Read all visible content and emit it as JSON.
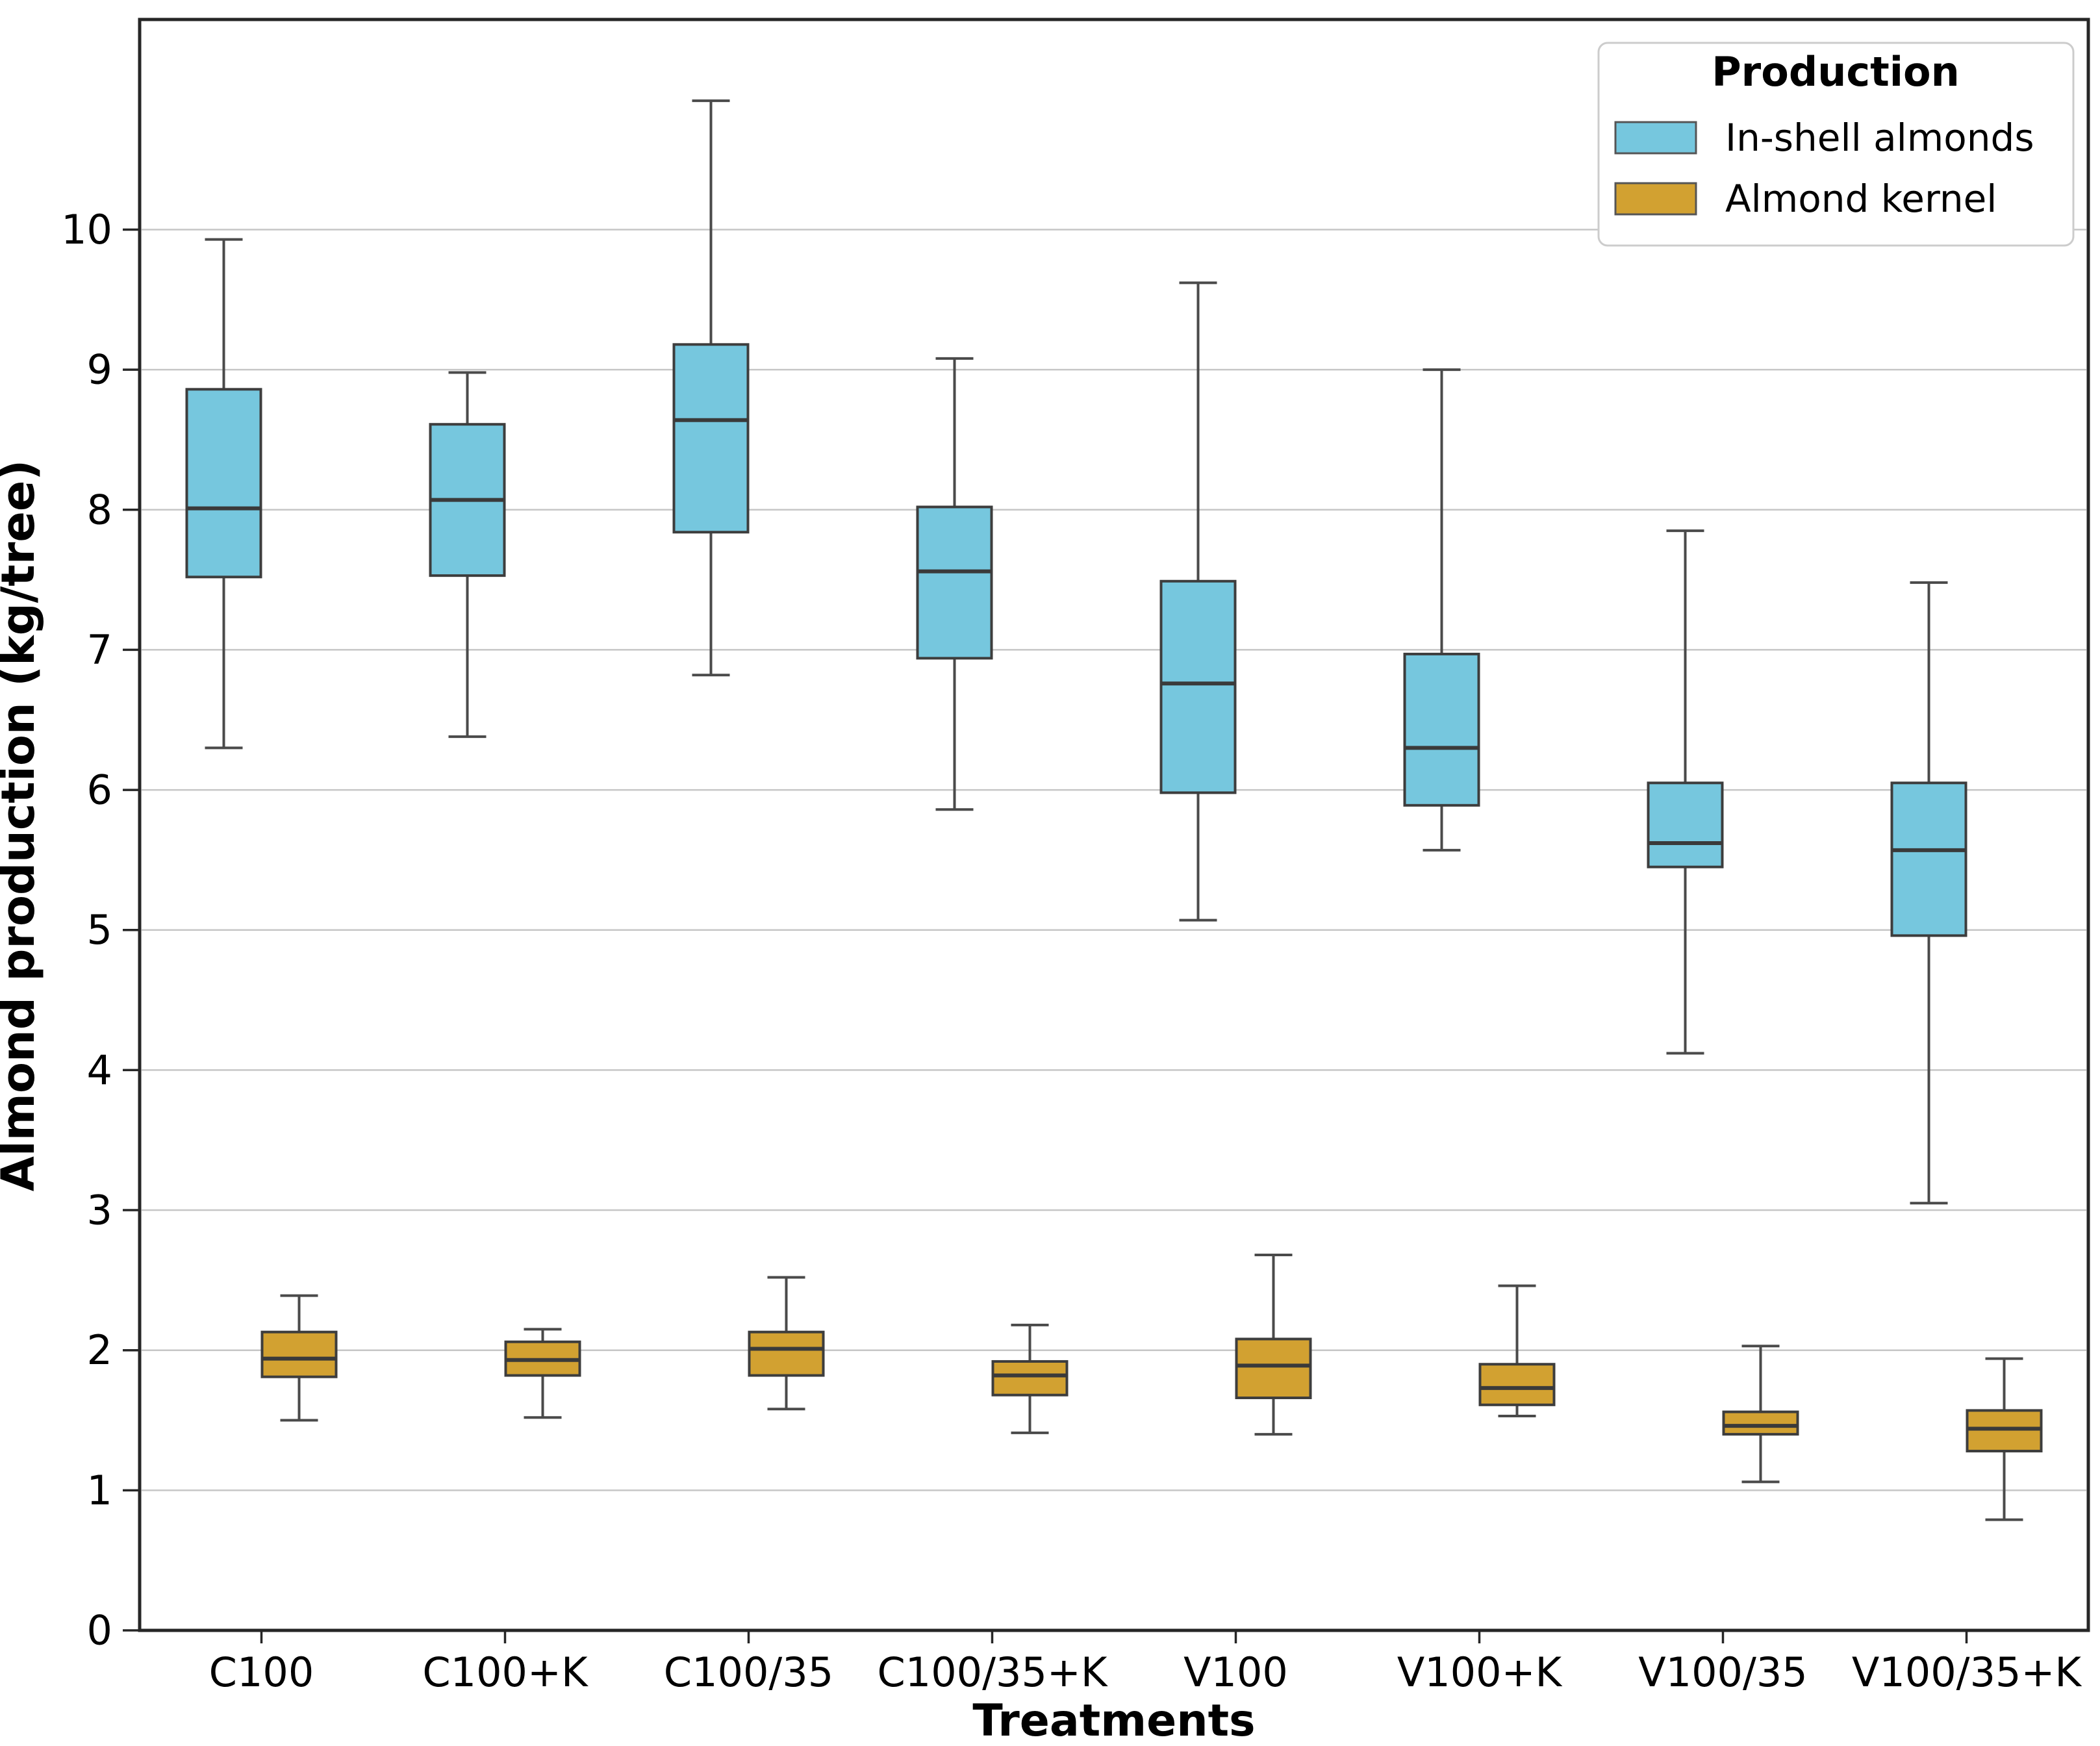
{
  "figure": {
    "background": "#ffffff"
  },
  "chart_data": {
    "type": "boxplot",
    "title": "",
    "xlabel": "Treatments",
    "ylabel": "Almond production (kg/tree)",
    "ylim": [
      0,
      11.5
    ],
    "yticks": [
      0,
      1,
      2,
      3,
      4,
      5,
      6,
      7,
      8,
      9,
      10
    ],
    "grid": {
      "axis": "y",
      "lines_at": [
        1,
        2,
        3,
        4,
        5,
        6,
        7,
        8,
        9,
        10
      ],
      "color": "#c6c6c6"
    },
    "legend": {
      "title": "Production",
      "position": "upper-right",
      "entries": [
        {
          "label": "In-shell almonds",
          "color": "#76C7DE"
        },
        {
          "label": "Almond kernel",
          "color": "#D2A131"
        }
      ]
    },
    "categories": [
      "C100",
      "C100+K",
      "C100/35",
      "C100/35+K",
      "V100",
      "V100+K",
      "V100/35",
      "V100/35+K"
    ],
    "series": [
      {
        "name": "In-shell almonds",
        "color": "#76C7DE",
        "boxes": [
          {
            "whislo": 6.3,
            "q1": 7.52,
            "med": 8.01,
            "q3": 8.86,
            "whishi": 9.93
          },
          {
            "whislo": 6.38,
            "q1": 7.53,
            "med": 8.07,
            "q3": 8.61,
            "whishi": 8.98
          },
          {
            "whislo": 6.82,
            "q1": 7.84,
            "med": 8.64,
            "q3": 9.18,
            "whishi": 10.92
          },
          {
            "whislo": 5.86,
            "q1": 6.94,
            "med": 7.56,
            "q3": 8.02,
            "whishi": 9.08
          },
          {
            "whislo": 5.07,
            "q1": 5.98,
            "med": 6.76,
            "q3": 7.49,
            "whishi": 9.62
          },
          {
            "whislo": 5.57,
            "q1": 5.89,
            "med": 6.3,
            "q3": 6.97,
            "whishi": 9.0
          },
          {
            "whislo": 4.12,
            "q1": 5.45,
            "med": 5.62,
            "q3": 6.05,
            "whishi": 7.85
          },
          {
            "whislo": 3.05,
            "q1": 4.96,
            "med": 5.57,
            "q3": 6.05,
            "whishi": 7.48
          }
        ]
      },
      {
        "name": "Almond kernel",
        "color": "#D2A131",
        "boxes": [
          {
            "whislo": 1.5,
            "q1": 1.81,
            "med": 1.94,
            "q3": 2.13,
            "whishi": 2.39
          },
          {
            "whislo": 1.52,
            "q1": 1.82,
            "med": 1.93,
            "q3": 2.06,
            "whishi": 2.15
          },
          {
            "whislo": 1.58,
            "q1": 1.82,
            "med": 2.01,
            "q3": 2.13,
            "whishi": 2.52
          },
          {
            "whislo": 1.41,
            "q1": 1.68,
            "med": 1.82,
            "q3": 1.92,
            "whishi": 2.18
          },
          {
            "whislo": 1.4,
            "q1": 1.66,
            "med": 1.89,
            "q3": 2.08,
            "whishi": 2.68
          },
          {
            "whislo": 1.53,
            "q1": 1.61,
            "med": 1.73,
            "q3": 1.9,
            "whishi": 2.46
          },
          {
            "whislo": 1.06,
            "q1": 1.4,
            "med": 1.46,
            "q3": 1.56,
            "whishi": 2.03
          },
          {
            "whislo": 0.79,
            "q1": 1.28,
            "med": 1.44,
            "q3": 1.57,
            "whishi": 1.94
          }
        ]
      }
    ],
    "style": {
      "box_edge": "#3d3d3d",
      "median_color": "#3a3a3a",
      "whisker_color": "#4a4a4a",
      "spine_color": "#262626",
      "grid_color": "#c6c6c6",
      "text_color": "#000000"
    }
  }
}
